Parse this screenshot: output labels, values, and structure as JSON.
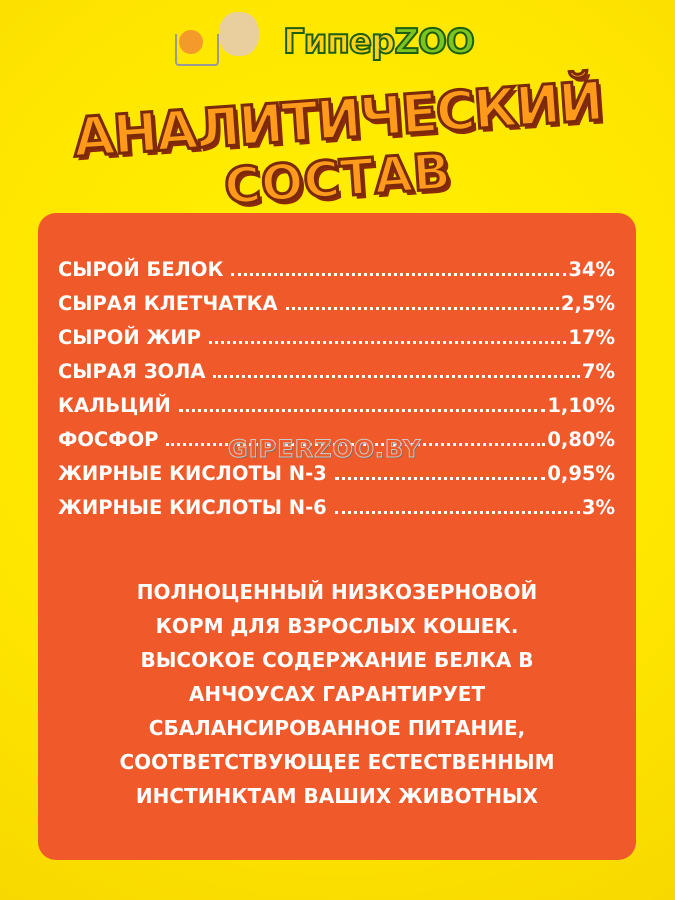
{
  "logo": {
    "text_part1": "Гипер",
    "text_part2": "ZOO"
  },
  "title": {
    "line1": "АНАЛИТИЧЕСКИЙ",
    "line2": "СОСТАВ"
  },
  "composition": [
    {
      "name": "СЫРОЙ БЕЛОК",
      "value": "34%"
    },
    {
      "name": "СЫРАЯ КЛЕТЧАТКА",
      "value": "2,5%"
    },
    {
      "name": "СЫРОЙ ЖИР",
      "value": "17%"
    },
    {
      "name": "СЫРАЯ ЗОЛА",
      "value": "7%"
    },
    {
      "name": "КАЛЬЦИЙ",
      "value": "1,10%"
    },
    {
      "name": "ФОСФОР",
      "value": "0,80%"
    },
    {
      "name": "ЖИРНЫЕ КИСЛОТЫ N-3",
      "value": "0,95%"
    },
    {
      "name": "ЖИРНЫЕ КИСЛОТЫ N-6",
      "value": "3%"
    }
  ],
  "watermark": "GIPERZOO.BY",
  "description": [
    "ПОЛНОЦЕННЫЙ НИЗКОЗЕРНОВОЙ",
    "КОРМ ДЛЯ ВЗРОСЛЫХ КОШЕК.",
    "ВЫСОКОЕ СОДЕРЖАНИЕ БЕЛКА В",
    "АНЧОУСАХ ГАРАНТИРУЕТ",
    "СБАЛАНСИРОВАННОЕ ПИТАНИЕ,",
    "СООТВЕТСТВУЮЩЕЕ ЕСТЕСТВЕННЫМ",
    "ИНСТИНКТАМ ВАШИХ ЖИВОТНЫХ"
  ],
  "colors": {
    "background": "#ffe600",
    "panel": "#f05a2a",
    "title": "#ff9a1a"
  }
}
